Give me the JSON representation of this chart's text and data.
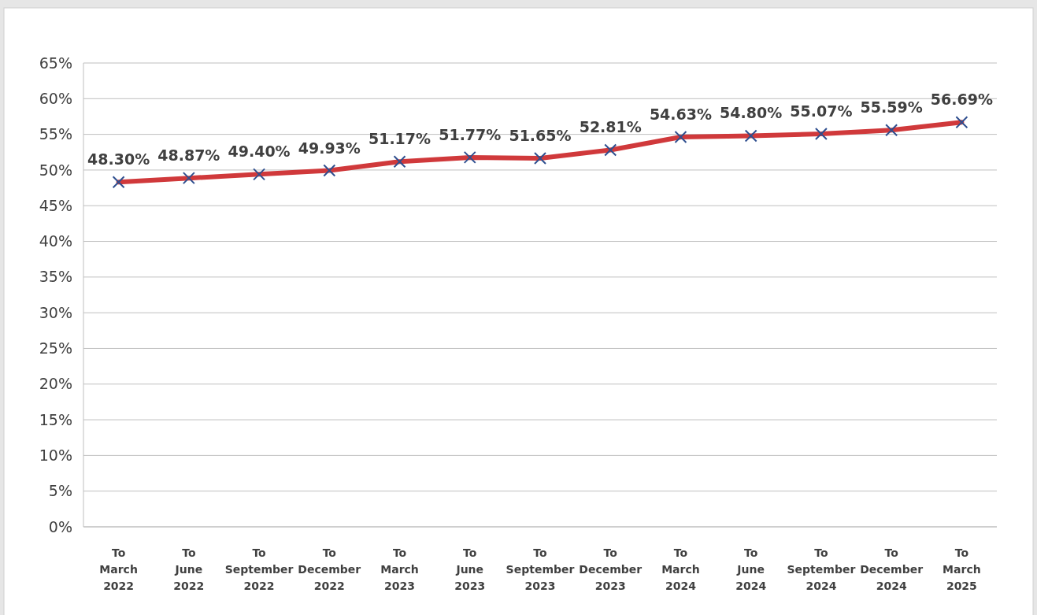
{
  "chart_data": {
    "type": "line",
    "categories": [
      "To March 2022",
      "To June 2022",
      "To September 2022",
      "To December 2022",
      "To March 2023",
      "To June 2023",
      "To September 2023",
      "To December 2023",
      "To March 2024",
      "To June 2024",
      "To September 2024",
      "To December 2024",
      "To March 2025"
    ],
    "series": [
      {
        "color": "#d0393b",
        "values": [
          48.3,
          48.87,
          49.4,
          49.93,
          51.17,
          51.77,
          51.65,
          52.81,
          54.63,
          54.8,
          55.07,
          55.59,
          56.69
        ],
        "value_labels": [
          "48.30%",
          "48.87%",
          "49.40%",
          "49.93%",
          "51.17%",
          "51.77%",
          "51.65%",
          "52.81%",
          "54.63%",
          "54.80%",
          "55.07%",
          "55.59%",
          "56.69%"
        ]
      }
    ],
    "marker": "cross",
    "ylim": [
      0,
      65
    ],
    "yticks": [
      {
        "value": 0,
        "label": "0%"
      },
      {
        "value": 5,
        "label": "5%"
      },
      {
        "value": 10,
        "label": "10%"
      },
      {
        "value": 15,
        "label": "15%"
      },
      {
        "value": 20,
        "label": "20%"
      },
      {
        "value": 25,
        "label": "25%"
      },
      {
        "value": 30,
        "label": "30%"
      },
      {
        "value": 35,
        "label": "35%"
      },
      {
        "value": 40,
        "label": "40%"
      },
      {
        "value": 45,
        "label": "45%"
      },
      {
        "value": 50,
        "label": "50%"
      },
      {
        "value": 55,
        "label": "55%"
      },
      {
        "value": 60,
        "label": "60%"
      },
      {
        "value": 65,
        "label": "65%"
      }
    ],
    "grid": "y"
  }
}
